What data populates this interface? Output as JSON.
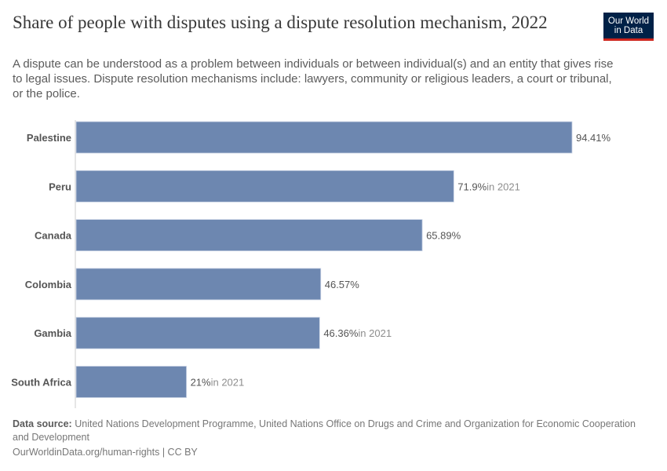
{
  "header": {
    "title": "Share of people with disputes using a dispute resolution mechanism, 2022",
    "subtitle": "A dispute can be understood as a problem between individuals or between individual(s) and an entity that gives rise to legal issues. Dispute resolution mechanisms include: lawyers, community or religious leaders, a court or tribunal, or the police.",
    "logo_line1": "Our World",
    "logo_line2": "in Data"
  },
  "chart_data": {
    "type": "bar",
    "orientation": "horizontal",
    "title": "Share of people with disputes using a dispute resolution mechanism, 2022",
    "xlabel": "",
    "ylabel": "",
    "unit": "%",
    "xlim": [
      0,
      100
    ],
    "categories": [
      "Palestine",
      "Peru",
      "Canada",
      "Colombia",
      "Gambia",
      "South Africa"
    ],
    "values": [
      94.41,
      71.9,
      65.89,
      46.57,
      46.36,
      21
    ],
    "value_labels": [
      "94.41%",
      "71.9%",
      "65.89%",
      "46.57%",
      "46.36%",
      "21%"
    ],
    "year_notes": [
      "",
      "in 2021",
      "",
      "",
      "in 2021",
      "in 2021"
    ],
    "bar_color": "#6d87b0",
    "grid": false,
    "legend": "none"
  },
  "footer": {
    "source_label": "Data source:",
    "source_text": "United Nations Development Programme, United Nations Office on Drugs and Crime and Organization for Economic Cooperation and Development",
    "url_text": "OurWorldinData.org/human-rights | CC BY"
  }
}
